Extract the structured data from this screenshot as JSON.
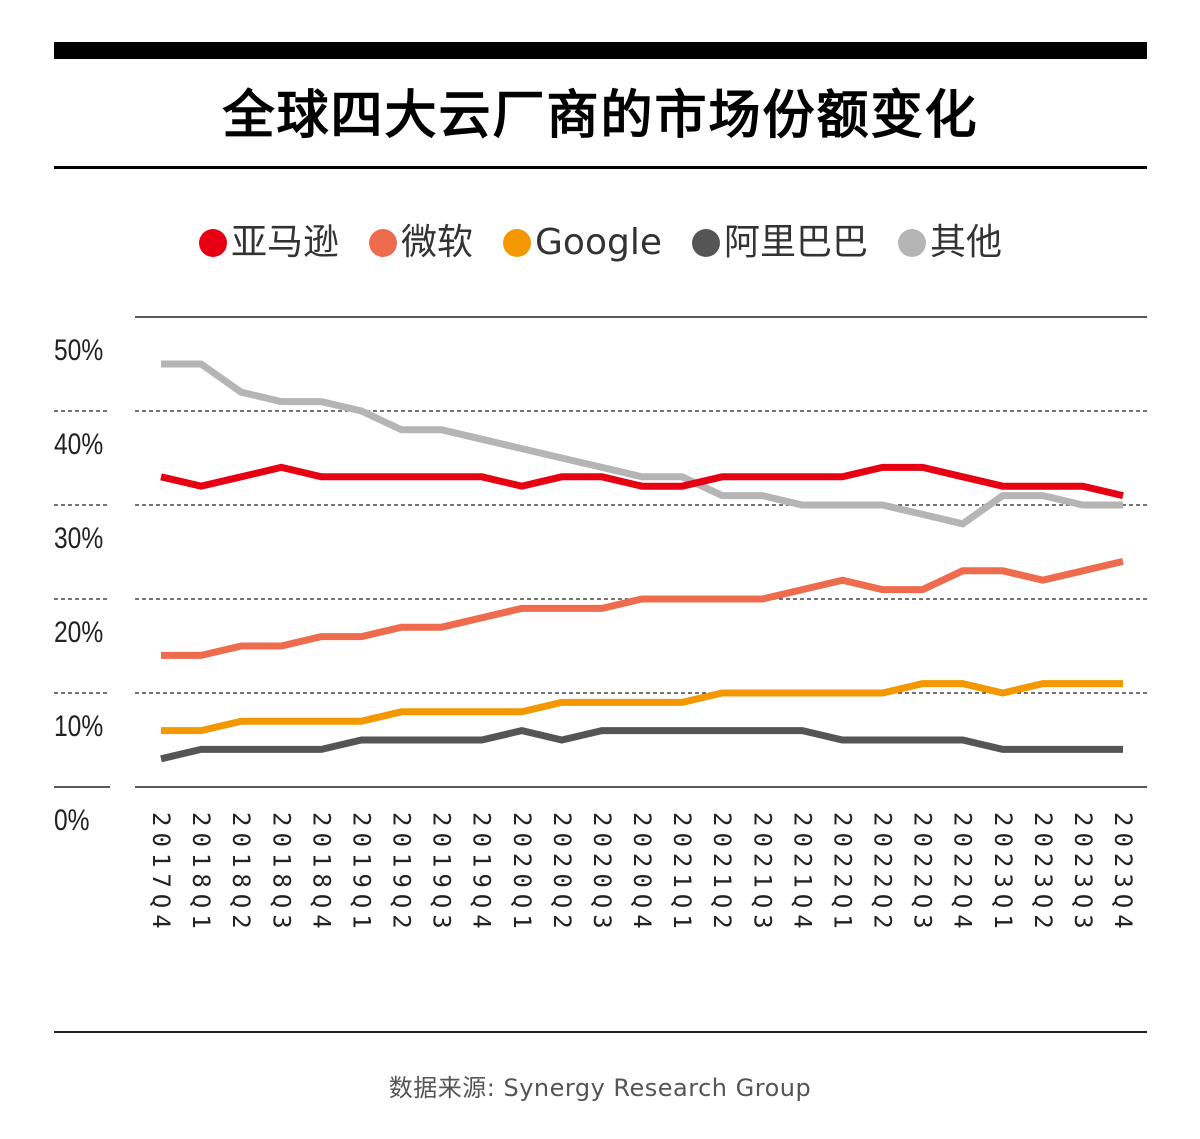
{
  "title": "全球四大云厂商的市场份额变化",
  "source": "数据来源: Synergy Research Group",
  "legend": [
    {
      "label": "亚马逊",
      "color": "#e60012"
    },
    {
      "label": "微软",
      "color": "#ee6b4d"
    },
    {
      "label": "Google",
      "color": "#f39800"
    },
    {
      "label": "阿里巴巴",
      "color": "#555555"
    },
    {
      "label": "其他",
      "color": "#b5b5b5"
    }
  ],
  "chart_data": {
    "type": "line",
    "title": "全球四大云厂商的市场份额变化",
    "xlabel": "",
    "ylabel": "",
    "ylim": [
      0,
      50
    ],
    "yticks": [
      "0%",
      "10%",
      "20%",
      "30%",
      "40%",
      "50%"
    ],
    "grid": true,
    "legend_position": "top",
    "categories": [
      "2017Q4",
      "2018Q1",
      "2018Q2",
      "2018Q3",
      "2018Q4",
      "2019Q1",
      "2019Q2",
      "2019Q3",
      "2019Q4",
      "2020Q1",
      "2020Q2",
      "2020Q3",
      "2020Q4",
      "2021Q1",
      "2021Q2",
      "2021Q3",
      "2021Q4",
      "2022Q1",
      "2022Q2",
      "2022Q3",
      "2022Q4",
      "2023Q1",
      "2023Q2",
      "2023Q3",
      "2023Q4"
    ],
    "series": [
      {
        "name": "亚马逊",
        "color": "#e60012",
        "values": [
          33,
          32,
          33,
          34,
          33,
          33,
          33,
          33,
          33,
          32,
          33,
          33,
          32,
          32,
          33,
          33,
          33,
          33,
          34,
          34,
          33,
          32,
          32,
          32,
          31
        ]
      },
      {
        "name": "微软",
        "color": "#ee6b4d",
        "values": [
          14,
          14,
          15,
          15,
          16,
          16,
          17,
          17,
          18,
          19,
          19,
          19,
          20,
          20,
          20,
          20,
          21,
          22,
          21,
          21,
          23,
          23,
          22,
          23,
          24
        ]
      },
      {
        "name": "Google",
        "color": "#f39800",
        "values": [
          6,
          6,
          7,
          7,
          7,
          7,
          8,
          8,
          8,
          8,
          9,
          9,
          9,
          9,
          10,
          10,
          10,
          10,
          10,
          11,
          11,
          10,
          11,
          11,
          11
        ]
      },
      {
        "name": "阿里巴巴",
        "color": "#555555",
        "values": [
          3,
          4,
          4,
          4,
          4,
          5,
          5,
          5,
          5,
          6,
          5,
          6,
          6,
          6,
          6,
          6,
          6,
          5,
          5,
          5,
          5,
          4,
          4,
          4,
          4
        ]
      },
      {
        "name": "其他",
        "color": "#b5b5b5",
        "values": [
          45,
          45,
          42,
          41,
          41,
          40,
          38,
          38,
          37,
          36,
          35,
          34,
          33,
          33,
          31,
          31,
          30,
          30,
          30,
          29,
          28,
          31,
          31,
          30,
          30
        ]
      }
    ]
  }
}
